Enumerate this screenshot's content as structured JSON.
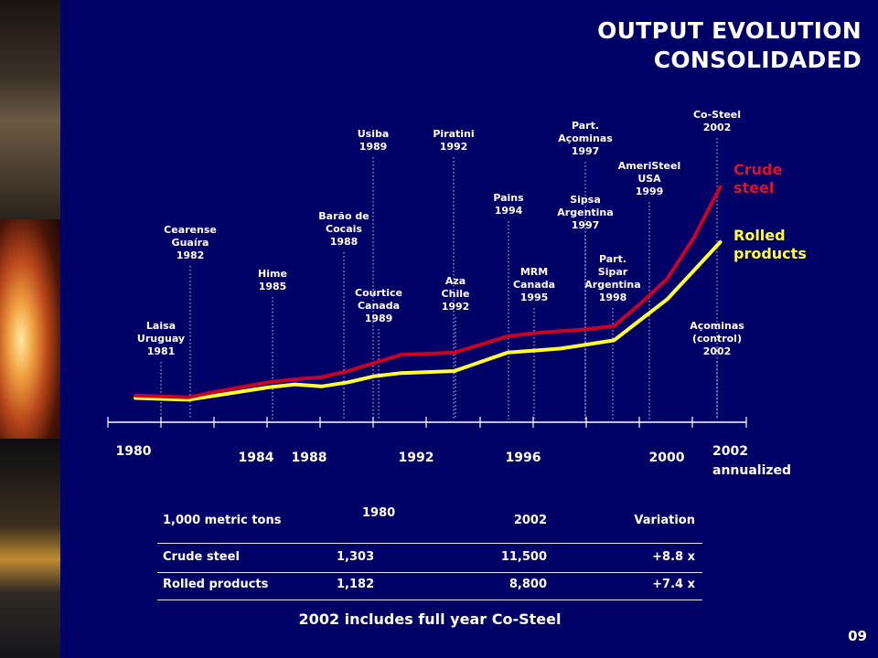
{
  "title_line1": "OUTPUT EVOLUTION",
  "title_line2": "CONSOLIDADED",
  "chart_data": {
    "type": "line",
    "x": [
      1980,
      1981,
      1982,
      1983,
      1984,
      1985,
      1986,
      1987,
      1988,
      1989,
      1990,
      1991,
      1992,
      1993,
      1994,
      1995,
      1996,
      1997,
      1998,
      1999,
      2000,
      2001,
      2002
    ],
    "x_tick_labels": [
      "1980",
      "1984",
      "1988",
      "1992",
      "1996",
      "2000",
      "2002",
      "annualized"
    ],
    "series": [
      {
        "name": "Crude steel",
        "color": "#cc0022",
        "values": [
          1303,
          1260,
          1220,
          1480,
          1720,
          1950,
          2100,
          2200,
          2500,
          2900,
          3300,
          3350,
          3400,
          3800,
          4200,
          4350,
          4450,
          4550,
          4700,
          5800,
          7000,
          9000,
          11500
        ]
      },
      {
        "name": "Rolled products",
        "color": "#ffff33",
        "values": [
          1182,
          1140,
          1100,
          1300,
          1500,
          1700,
          1850,
          1750,
          1950,
          2250,
          2400,
          2450,
          2500,
          2950,
          3400,
          3500,
          3600,
          3800,
          4000,
          5000,
          6000,
          7400,
          8800
        ]
      }
    ],
    "legend": {
      "position": "right"
    },
    "annotations": [
      {
        "lines": [
          "Laisa",
          "Uruguay",
          "1981"
        ],
        "x": 1981
      },
      {
        "lines": [
          "Cearense",
          "Guaíra",
          "1982"
        ],
        "x": 1982
      },
      {
        "lines": [
          "Hime",
          "1985"
        ],
        "x": 1985
      },
      {
        "lines": [
          "Barão de",
          "Cocais",
          "1988"
        ],
        "x": 1988
      },
      {
        "lines": [
          "Usiba",
          "1989"
        ],
        "x": 1989
      },
      {
        "lines": [
          "Courtice",
          "Canada",
          "1989"
        ],
        "x": 1989
      },
      {
        "lines": [
          "Piratini",
          "1992"
        ],
        "x": 1992
      },
      {
        "lines": [
          "Aza",
          "Chile",
          "1992"
        ],
        "x": 1992
      },
      {
        "lines": [
          "Pains",
          "1994"
        ],
        "x": 1994
      },
      {
        "lines": [
          "MRM",
          "Canada",
          "1995"
        ],
        "x": 1995
      },
      {
        "lines": [
          "Part.",
          "Açominas",
          "1997"
        ],
        "x": 1997
      },
      {
        "lines": [
          "Sipsa",
          "Argentina",
          "1997"
        ],
        "x": 1997
      },
      {
        "lines": [
          "Part.",
          "Sipar",
          "Argentina",
          "1998"
        ],
        "x": 1998
      },
      {
        "lines": [
          "AmeriSteel",
          "USA",
          "1999"
        ],
        "x": 1999
      },
      {
        "lines": [
          "Co-Steel",
          "2002"
        ],
        "x": 2002
      },
      {
        "lines": [
          "Açominas",
          "(control)",
          "2002"
        ],
        "x": 2002
      }
    ]
  },
  "legend_crude": [
    "Crude",
    "steel"
  ],
  "legend_rolled": [
    "Rolled",
    "products"
  ],
  "table": {
    "headers": [
      "1,000 metric tons",
      "1980",
      "2002",
      "Variation"
    ],
    "rows": [
      [
        "Crude steel",
        "1,303",
        "11,500",
        "+8.8 x"
      ],
      [
        "Rolled products",
        "1,182",
        "8,800",
        "+7.4 x"
      ]
    ]
  },
  "footnote": "2002 includes full year Co-Steel",
  "page_number": "09",
  "colors": {
    "background": "#000066",
    "crude": "#cc0022",
    "rolled": "#ffff33"
  }
}
